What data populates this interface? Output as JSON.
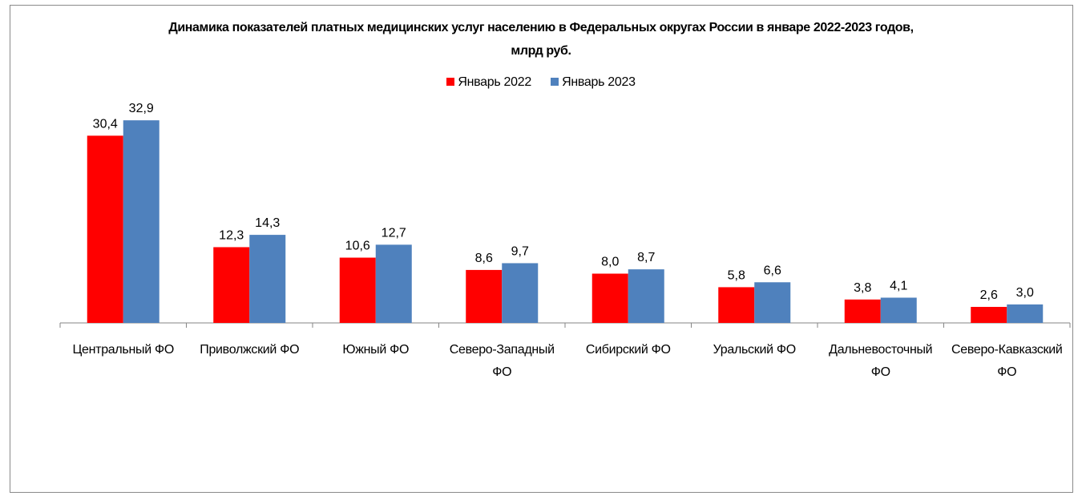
{
  "chart_data": {
    "type": "bar",
    "title": "Динамика показателей платных медицинских услуг населению в Федеральных округах России в январе 2022-2023 годов,",
    "subtitle": "млрд руб.",
    "categories": [
      [
        "Центральный ФО"
      ],
      [
        "Приволжский ФО"
      ],
      [
        "Южный ФО"
      ],
      [
        "Северо-Западный",
        "ФО"
      ],
      [
        "Сибирский ФО"
      ],
      [
        "Уральский ФО"
      ],
      [
        "Дальневосточный",
        "ФО"
      ],
      [
        "Северо-Кавказский",
        "ФО"
      ]
    ],
    "series": [
      {
        "name": "Январь 2022",
        "color": "#ff0000",
        "values": [
          30.4,
          12.3,
          10.6,
          8.6,
          8.0,
          5.8,
          3.8,
          2.6
        ],
        "labels": [
          "30,4",
          "12,3",
          "10,6",
          "8,6",
          "8,0",
          "5,8",
          "3,8",
          "2,6"
        ]
      },
      {
        "name": "Январь 2023",
        "color": "#4f81bd",
        "values": [
          32.9,
          14.3,
          12.7,
          9.7,
          8.7,
          6.6,
          4.1,
          3.0
        ],
        "labels": [
          "32,9",
          "14,3",
          "12,7",
          "9,7",
          "8,7",
          "6,6",
          "4,1",
          "3,0"
        ]
      }
    ],
    "xlabel": "",
    "ylabel": "",
    "ylim": [
      0,
      35
    ],
    "grid": false,
    "y_axis_visible": false,
    "legend": "top-center"
  }
}
